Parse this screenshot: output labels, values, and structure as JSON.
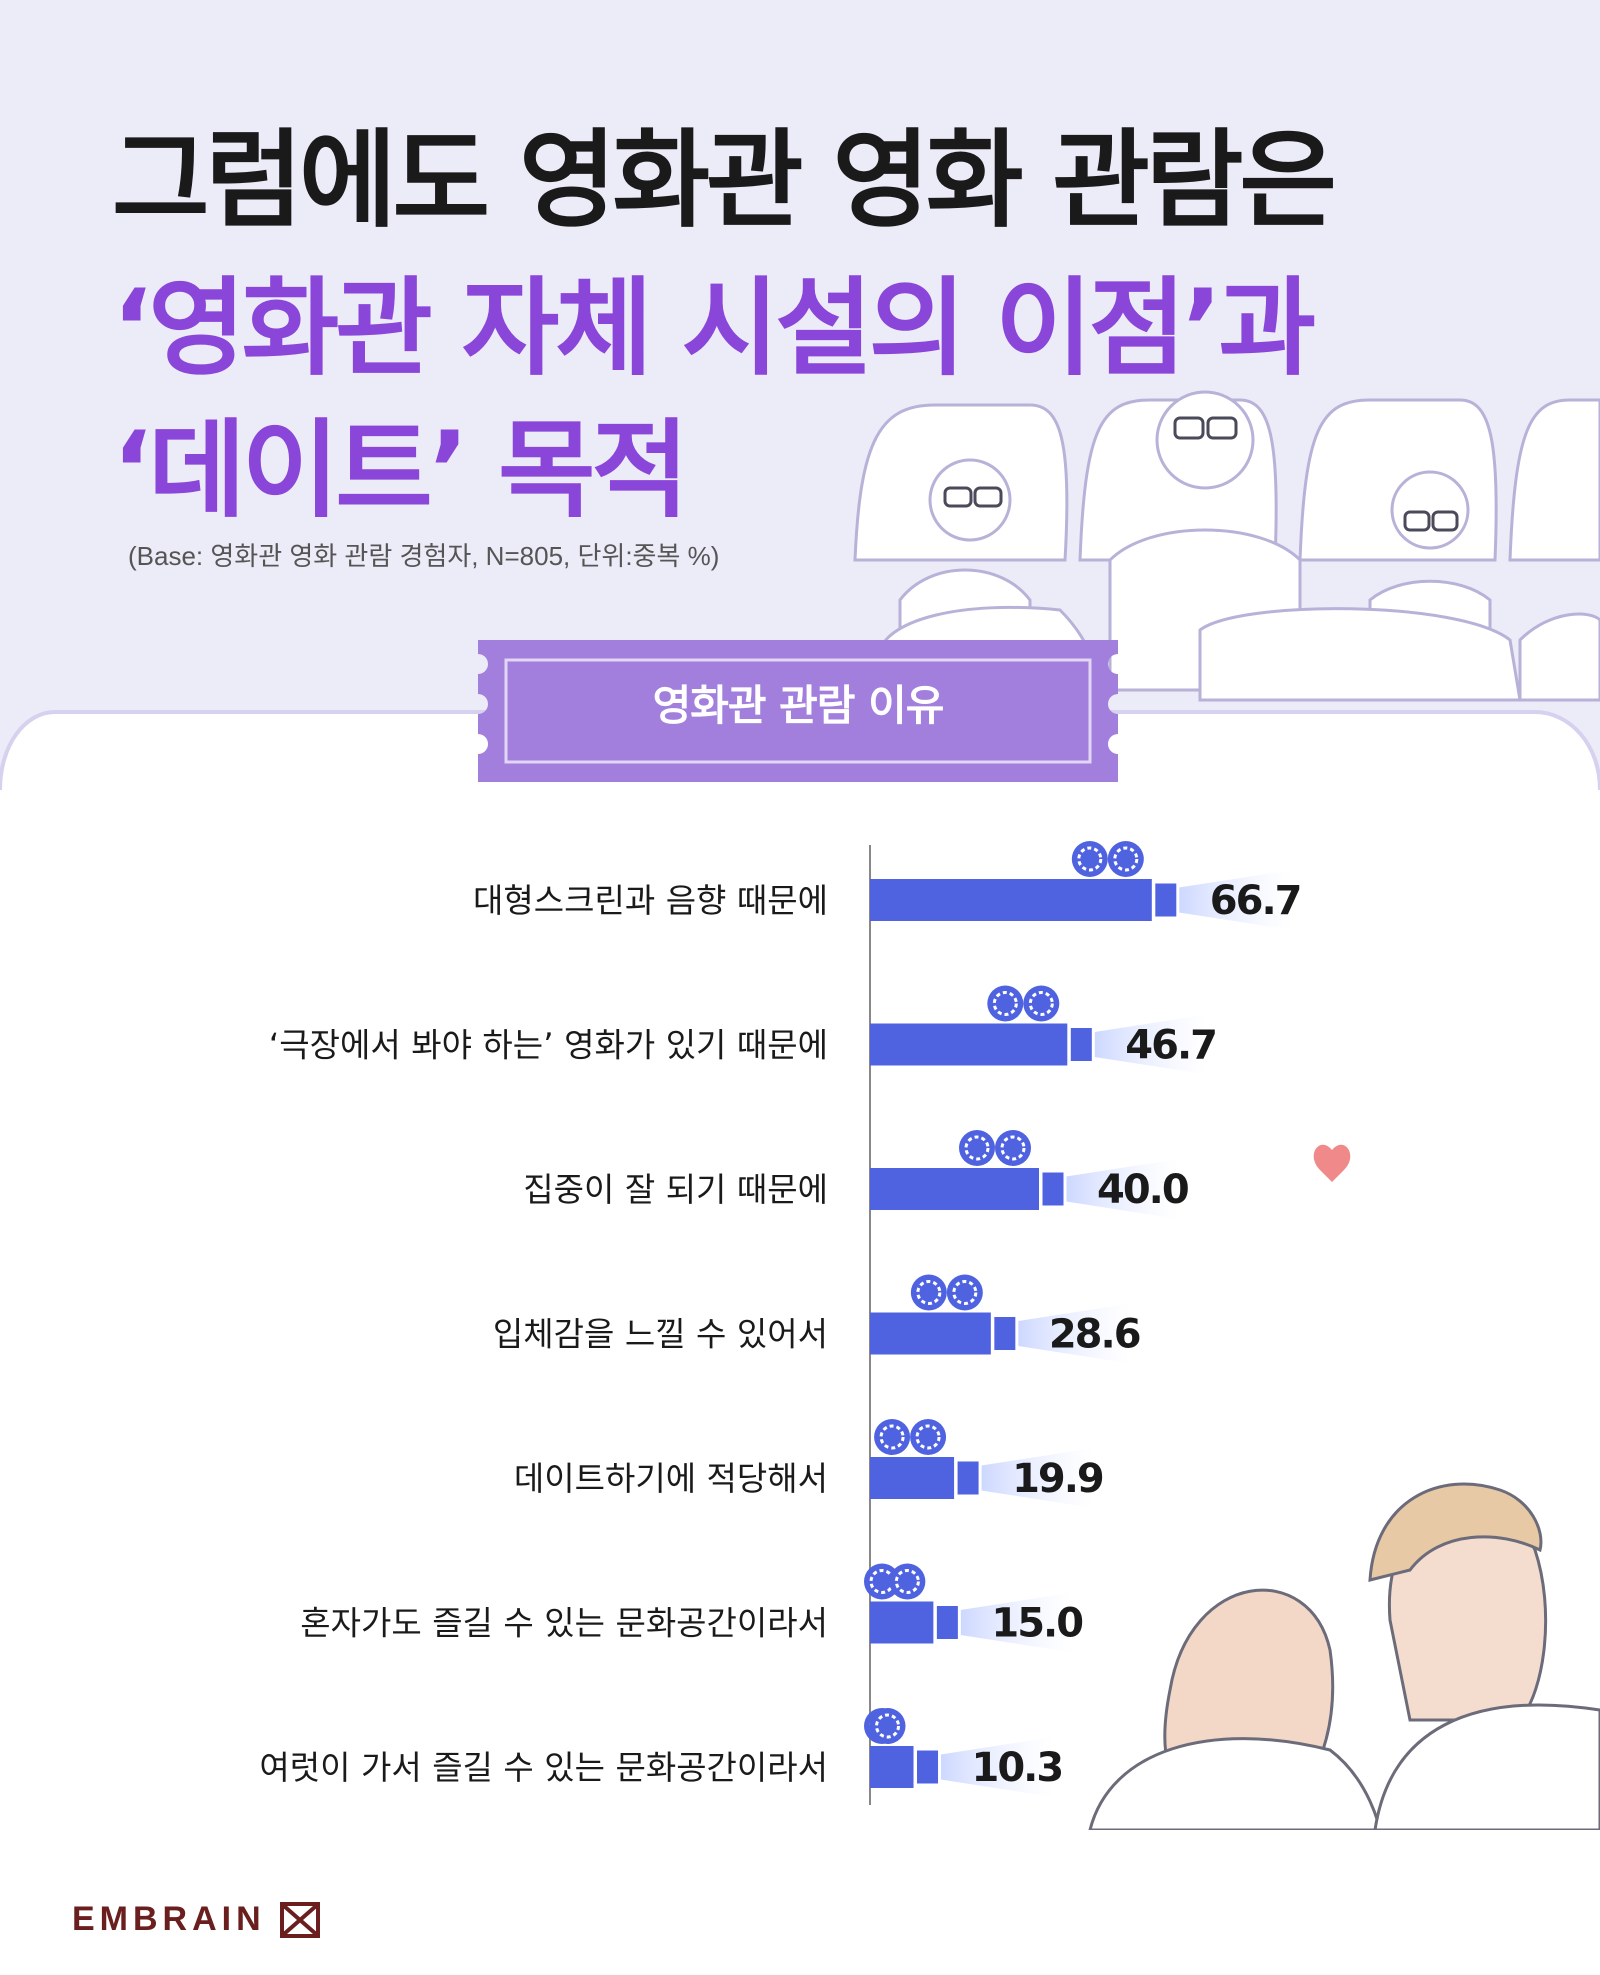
{
  "headline": {
    "line1": "그럼에도 영화관 영화 관람은",
    "line2": "‘영화관 자체 시설의 이점’과",
    "line3": "‘데이트’ 목적"
  },
  "base_note": "(Base: 영화관 영화 관람 경험자, N=805, 단위:중복 %)",
  "ticket_label": "영화관 관람 이유",
  "brand": "EMBRAIN",
  "colors": {
    "headline_dark": "#1a1a1a",
    "headline_accent": "#8a45d9",
    "top_background": "#ecebf8",
    "ticket": "#a27fdc",
    "bar": "#4f63e0",
    "bar_light": "#c8d4ff"
  },
  "icons": [
    "film-camera-icon",
    "heart-icon",
    "embrain-logo-icon"
  ],
  "chart_data": {
    "type": "bar",
    "orientation": "horizontal",
    "categories": [
      "대형스크린과 음향 때문에",
      "‘극장에서  봐야 하는’ 영화가 있기 때문에",
      "집중이 잘 되기 때문에",
      "입체감을 느낄 수 있어서",
      "데이트하기에 적당해서",
      "혼자가도 즐길 수 있는 문화공간이라서",
      "여럿이 가서 즐길 수 있는 문화공간이라서"
    ],
    "values": [
      66.7,
      46.7,
      40.0,
      28.6,
      19.9,
      15.0,
      10.3
    ],
    "value_labels": [
      "66.7",
      "46.7",
      "40.0",
      "28.6",
      "19.9",
      "15.0",
      "10.3"
    ],
    "xlim": [
      0,
      70
    ],
    "grid": false,
    "legend": "none"
  }
}
